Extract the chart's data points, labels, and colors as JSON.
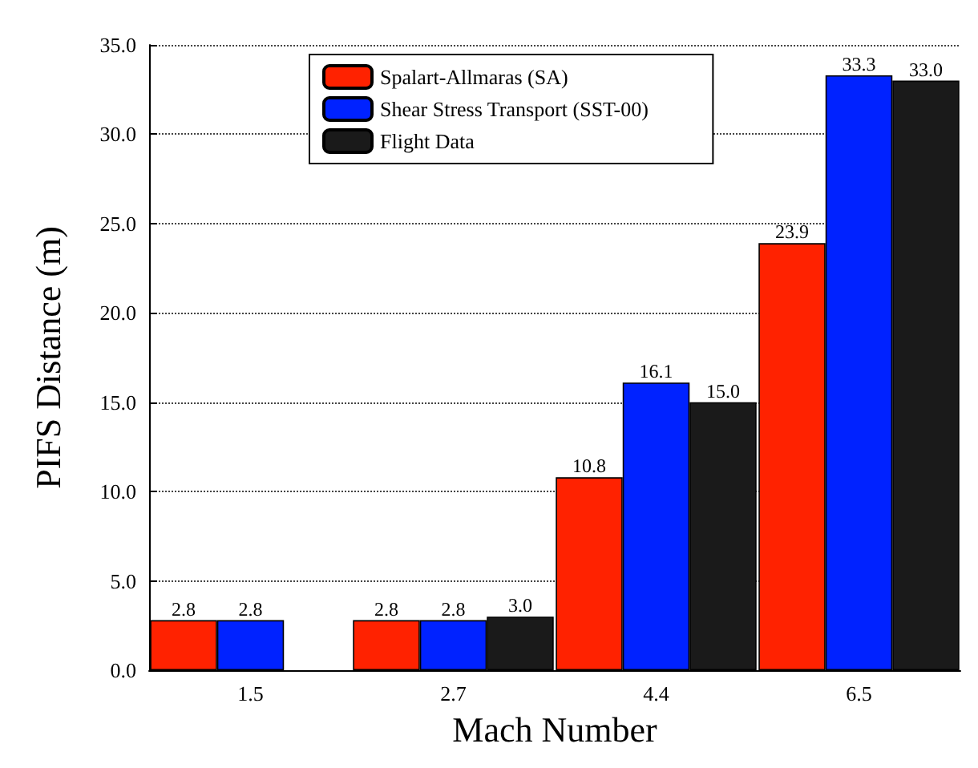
{
  "chart_data": {
    "type": "bar",
    "xlabel": "Mach Number",
    "ylabel": "PIFS Distance (m)",
    "categories": [
      "1.5",
      "2.7",
      "4.4",
      "6.5"
    ],
    "series": [
      {
        "name": "Spalart-Allmaras (SA)",
        "color": "#ff2200",
        "values": [
          2.8,
          2.8,
          10.8,
          23.9
        ],
        "value_labels": [
          "2.8",
          "2.8",
          "10.8",
          "23.9"
        ]
      },
      {
        "name": "Shear Stress Transport (SST-00)",
        "color": "#0022ff",
        "values": [
          2.8,
          2.8,
          16.1,
          33.3
        ],
        "value_labels": [
          "2.8",
          "2.8",
          "16.1",
          "33.3"
        ]
      },
      {
        "name": "Flight Data",
        "color": "#1a1a1a",
        "values": [
          null,
          3.0,
          15.0,
          33.0
        ],
        "value_labels": [
          null,
          "3.0",
          "15.0",
          "33.0"
        ]
      }
    ],
    "ylim": [
      0,
      35
    ],
    "yticks": [
      {
        "value": 0,
        "label": "0.0"
      },
      {
        "value": 5,
        "label": "5.0"
      },
      {
        "value": 10,
        "label": "10.0"
      },
      {
        "value": 15,
        "label": "15.0"
      },
      {
        "value": 20,
        "label": "20.0"
      },
      {
        "value": 25,
        "label": "25.0"
      },
      {
        "value": 30,
        "label": "30.0"
      },
      {
        "value": 35,
        "label": "35.0"
      }
    ],
    "grid": "y",
    "legend": "top"
  }
}
